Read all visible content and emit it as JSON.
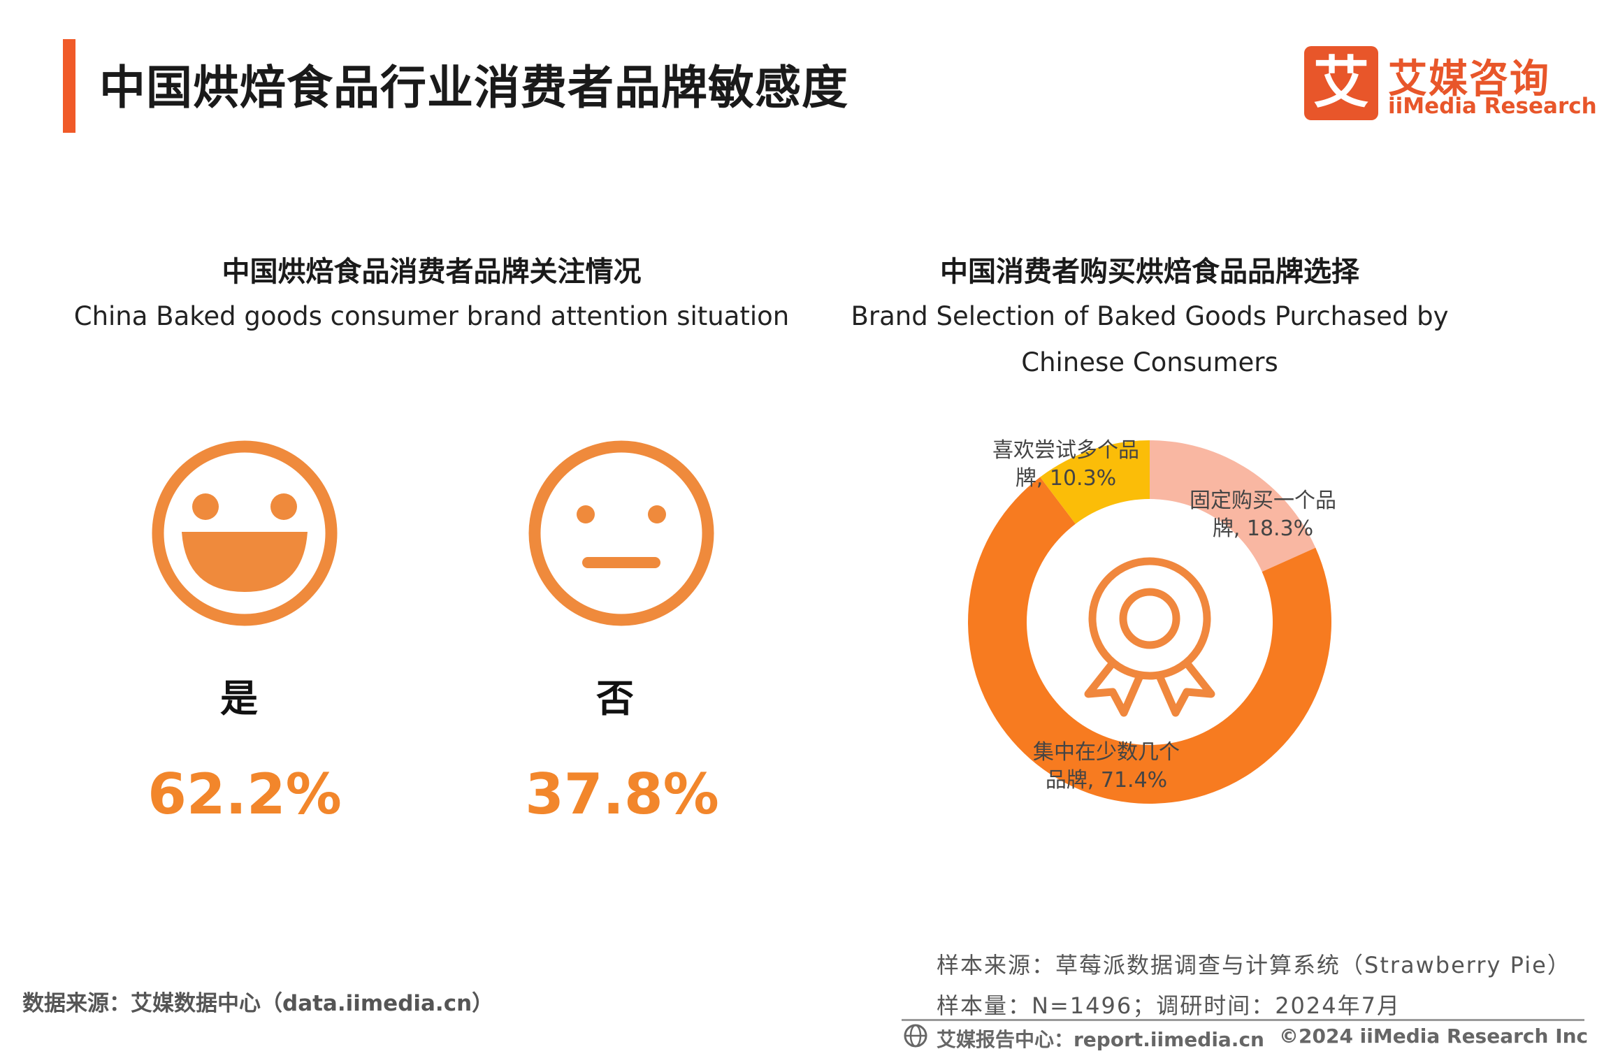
{
  "header": {
    "title": "中国烘焙食品行业消费者品牌敏感度",
    "logo_char": "艾",
    "logo_cn": "艾媒咨询",
    "logo_en": "iiMedia Research"
  },
  "left_section": {
    "title_cn": "中国烘焙食品消费者品牌关注情况",
    "title_en": "China Baked goods consumer brand attention situation",
    "items": [
      {
        "label": "是",
        "value": "62.2%",
        "icon": "happy-face-icon"
      },
      {
        "label": "否",
        "value": "37.8%",
        "icon": "neutral-face-icon"
      }
    ]
  },
  "right_section": {
    "title_cn": "中国消费者购买烘焙食品品牌选择",
    "title_en_line1": "Brand Selection of Baked Goods Purchased by",
    "title_en_line2": "Chinese Consumers",
    "center_icon": "award-ribbon-icon"
  },
  "chart_data": [
    {
      "type": "bar",
      "categories": [
        "是",
        "否"
      ],
      "values": [
        62.2,
        37.8
      ],
      "unit": "%",
      "title": "中国烘焙食品消费者品牌关注情况"
    },
    {
      "type": "pie",
      "style": "donut",
      "title": "中国消费者购买烘焙食品品牌选择",
      "categories": [
        "固定购买一个品牌",
        "集中在少数几个品牌",
        "喜欢尝试多个品牌"
      ],
      "values": [
        18.3,
        71.4,
        10.3
      ],
      "labels": [
        [
          "固定购买一个品",
          "牌, 18.3%"
        ],
        [
          "集中在少数几个",
          "品牌, 71.4%"
        ],
        [
          "喜欢尝试多个品",
          "牌, 10.3%"
        ]
      ],
      "colors": [
        "#f9b7a2",
        "#f77b20",
        "#fbbd08"
      ]
    }
  ],
  "footer": {
    "data_source": "数据来源：艾媒数据中心（data.iimedia.cn）",
    "sample_source": "样本来源：草莓派数据调查与计算系统（Strawberry Pie）",
    "sample_size": "样本量：N=1496；调研时间：2024年7月",
    "report_center": "艾媒报告中心：report.iimedia.cn",
    "copyright": "©2024 iiMedia Research  Inc"
  },
  "colors": {
    "accent": "#f05a28",
    "face": "#ef8a3c",
    "percent": "#f2862b"
  }
}
